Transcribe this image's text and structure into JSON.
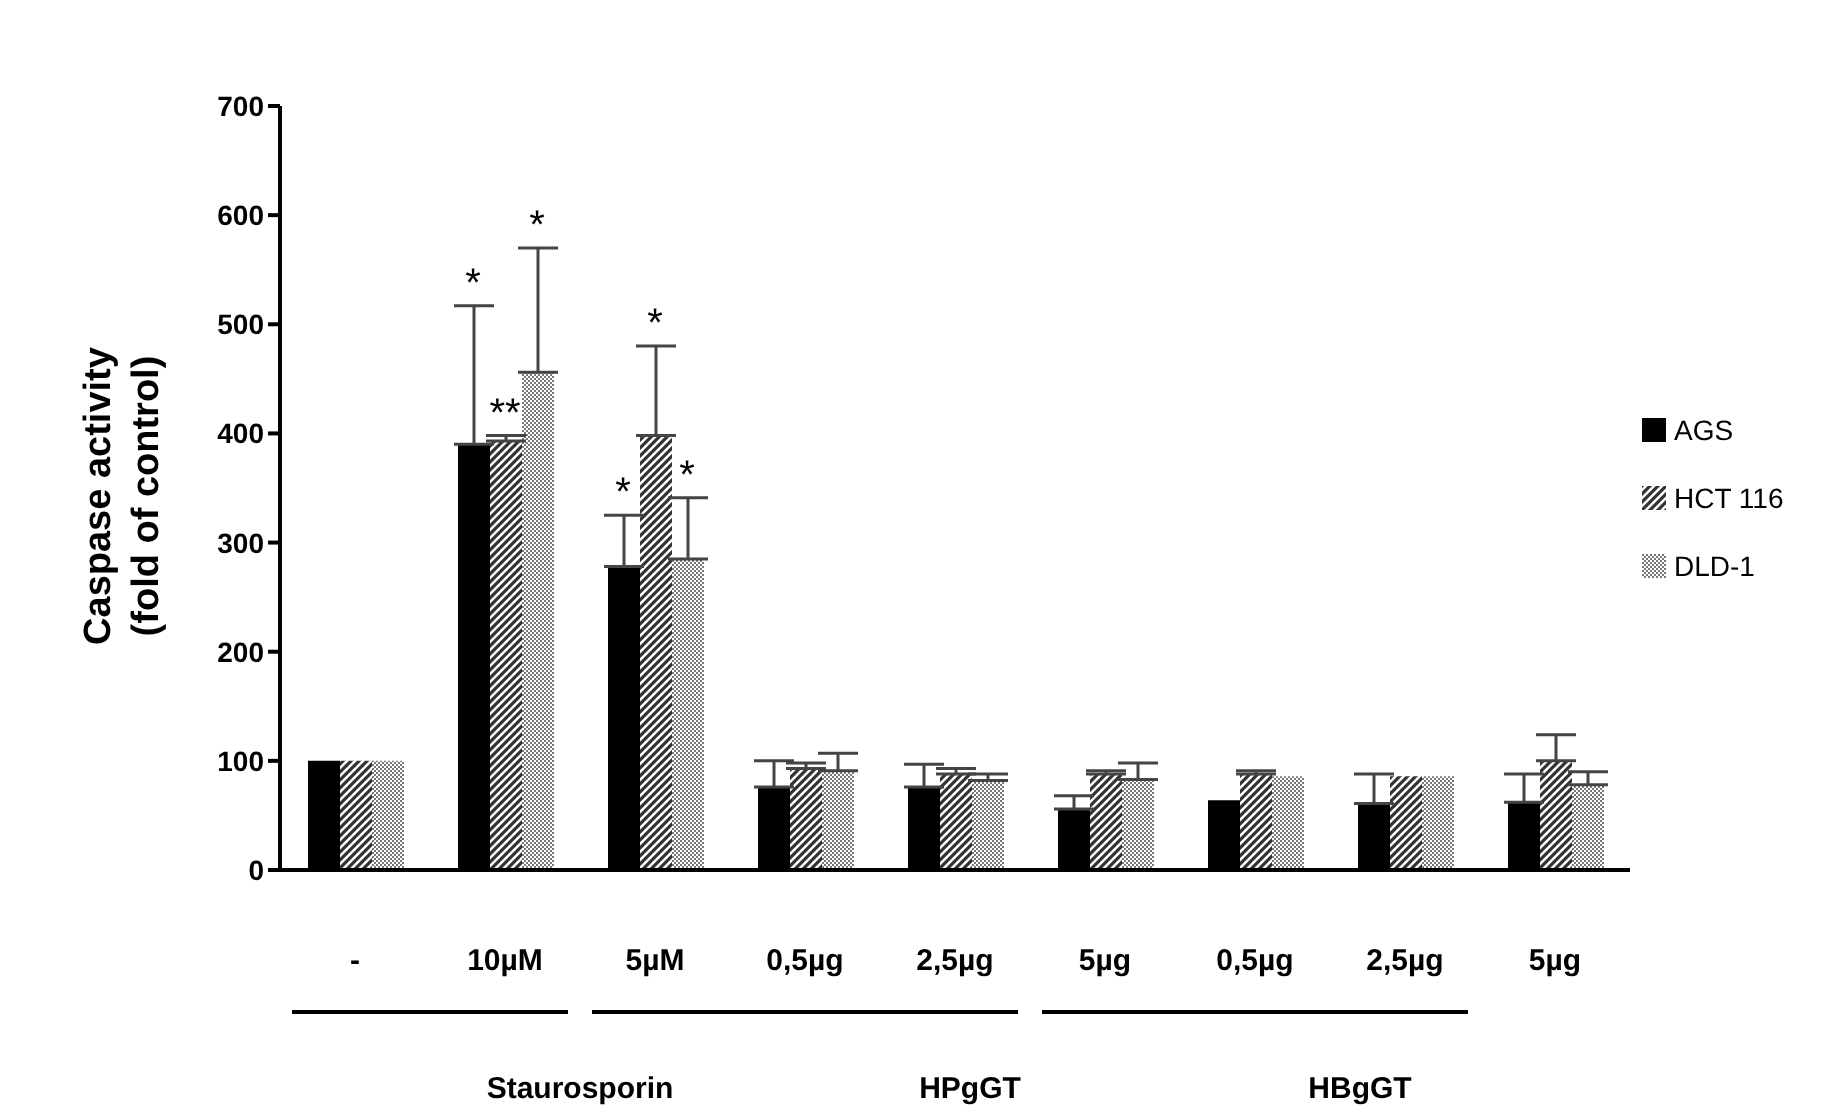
{
  "chart_data": {
    "type": "bar",
    "ylabel": "Caspase activity\n(fold of control)",
    "categories": [
      "-",
      "10µM",
      "5µM",
      "0,5µg",
      "2,5µg",
      "5µg",
      "0,5µg",
      "2,5µg",
      "5µg"
    ],
    "series": [
      {
        "name": "AGS",
        "color": "#000000",
        "values": [
          100,
          390,
          278,
          76,
          76,
          56,
          64,
          61,
          62
        ],
        "errors": [
          null,
          127,
          47,
          24,
          21,
          12,
          null,
          27,
          26
        ]
      },
      {
        "name": "HCT 116",
        "color": "#333333",
        "values": [
          100,
          393,
          398,
          93,
          88,
          88,
          88,
          86,
          100
        ],
        "errors": [
          null,
          5,
          82,
          5,
          5,
          3,
          3,
          null,
          24
        ]
      },
      {
        "name": "DLD-1",
        "color": "#777777",
        "values": [
          100,
          456,
          285,
          91,
          82,
          83,
          86,
          86,
          78
        ],
        "errors": [
          null,
          114,
          56,
          16,
          6,
          15,
          null,
          null,
          12
        ]
      }
    ],
    "ylim": [
      0,
      700
    ],
    "yticks": [
      0,
      100,
      200,
      300,
      400,
      500,
      600,
      700
    ],
    "grid": false,
    "legend": "right",
    "annotations": [
      "*",
      "**",
      "*",
      "*",
      "*",
      "*",
      "Staurosporin",
      "HPgGT",
      "HBgGT"
    ]
  }
}
